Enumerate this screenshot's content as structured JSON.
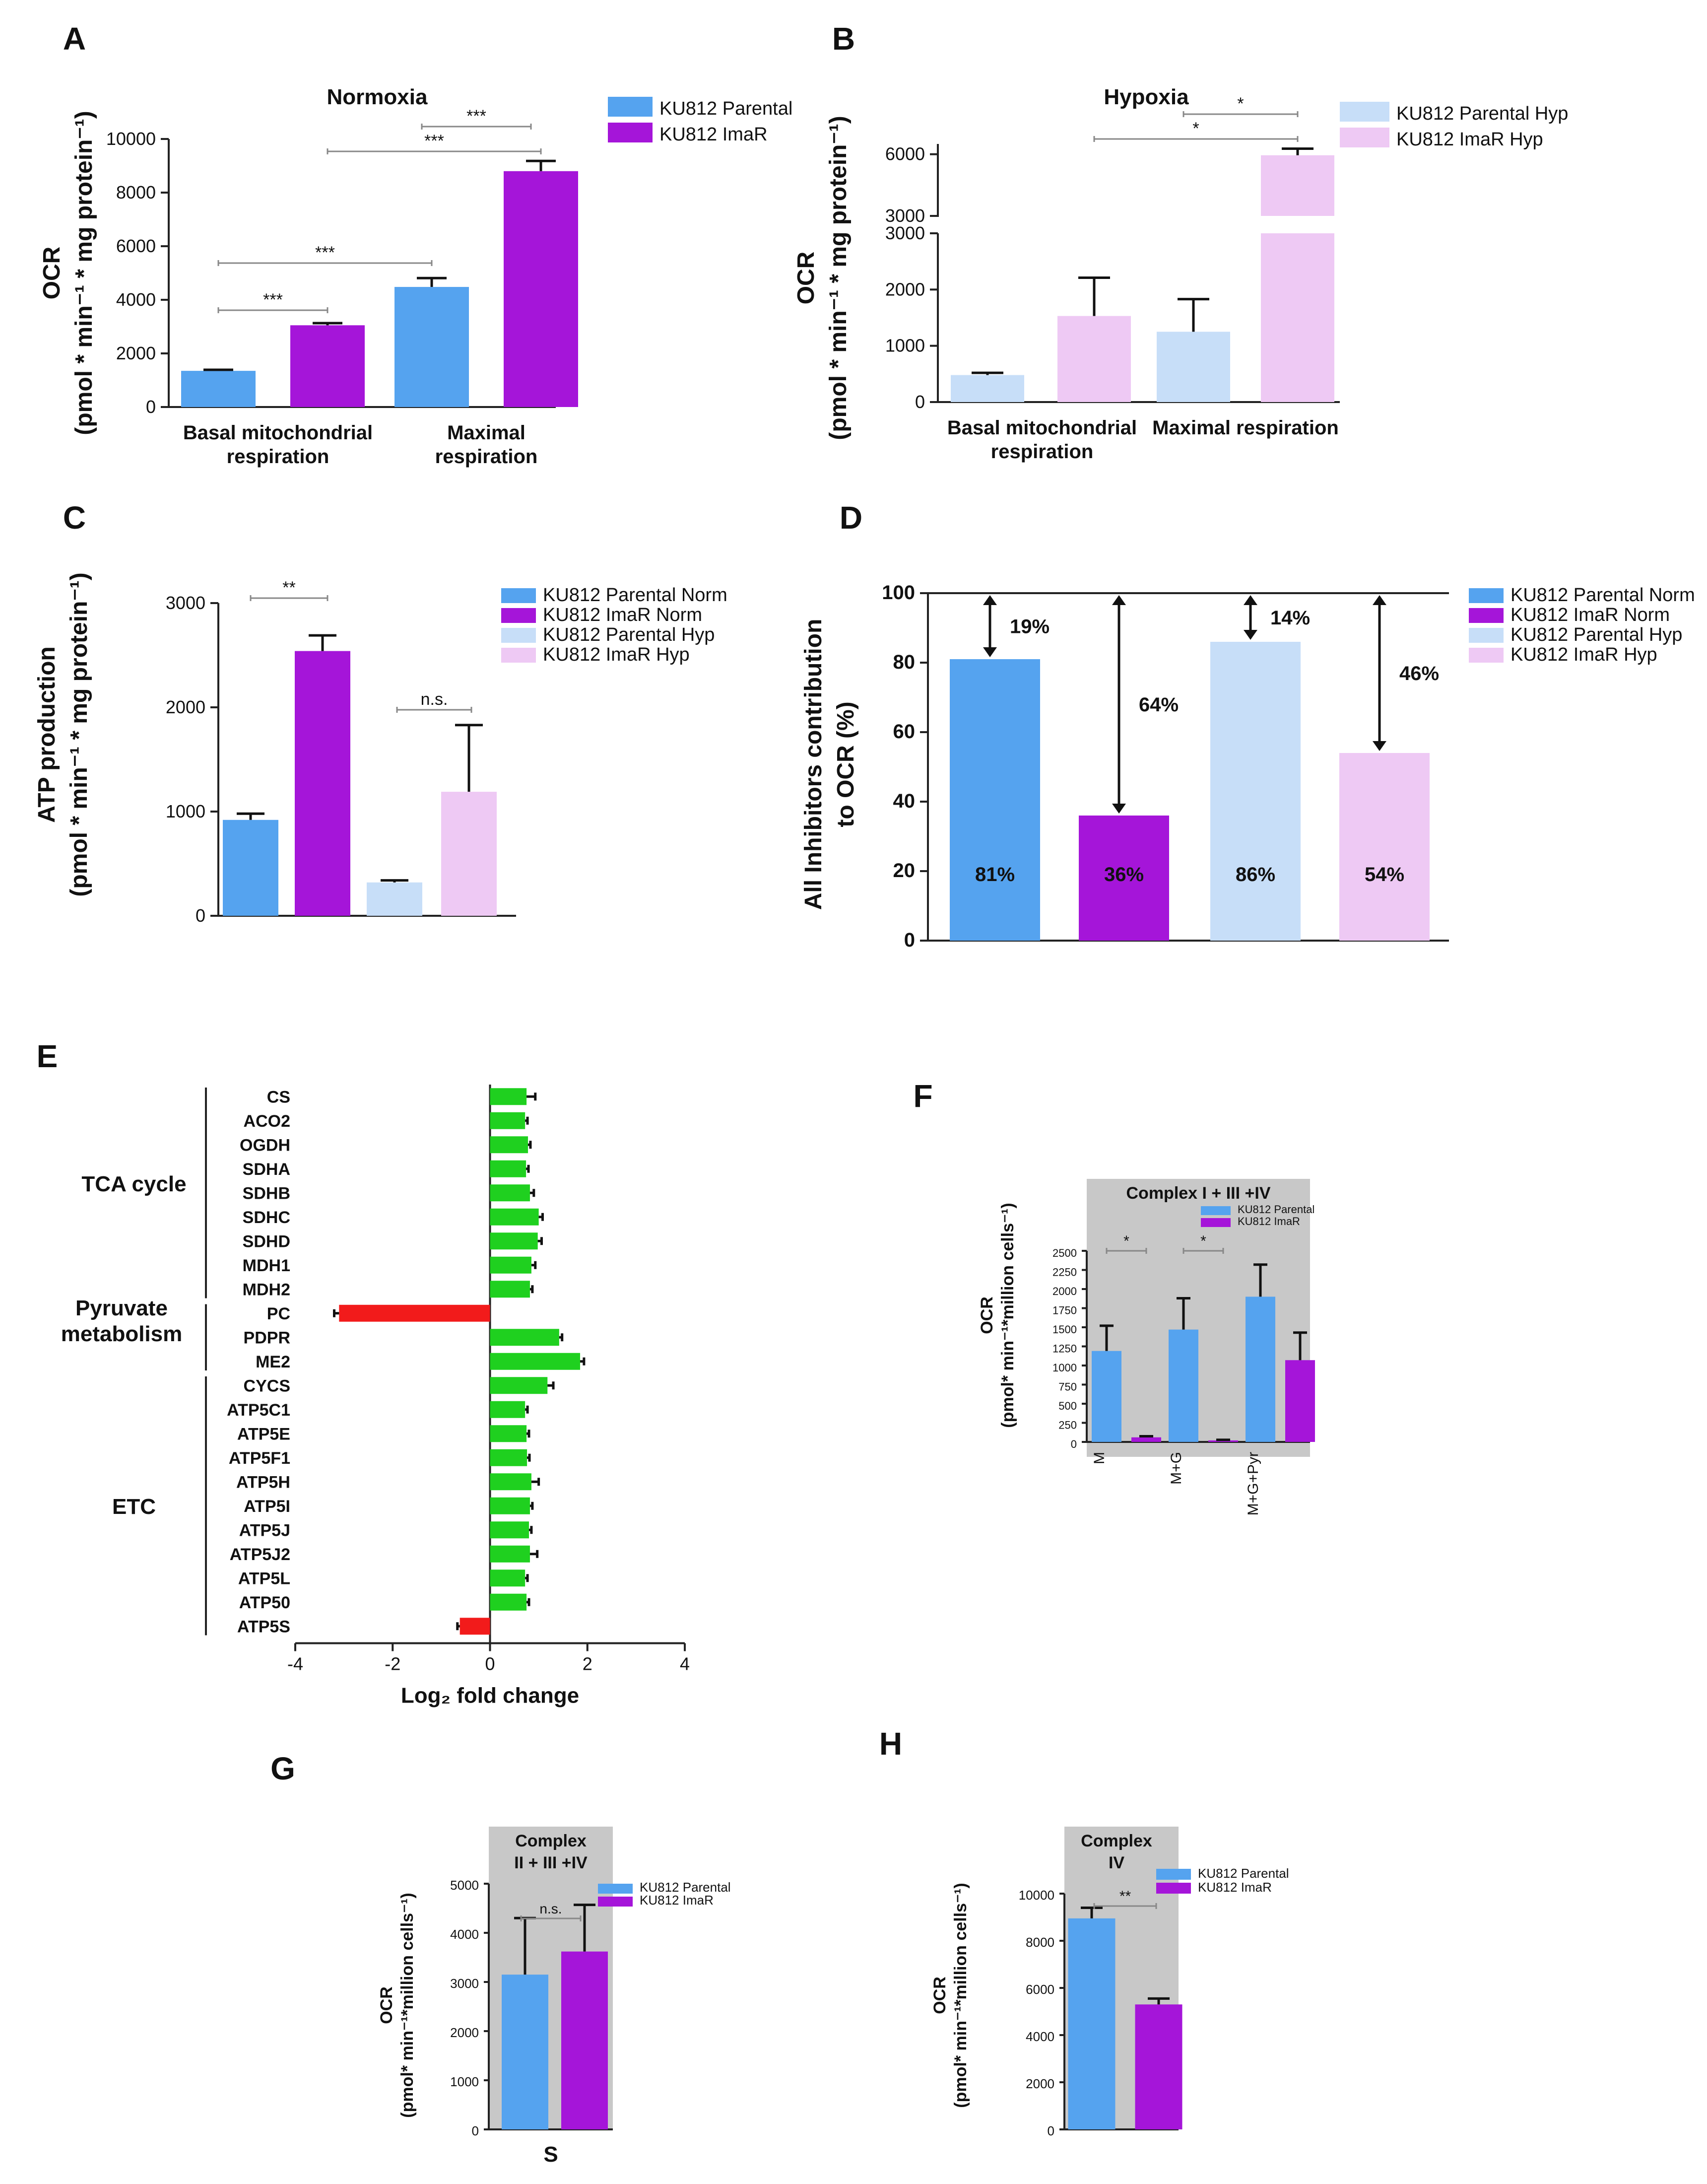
{
  "colors": {
    "parental": "#55a3ef",
    "imar": "#a515d9",
    "parental_hyp": "#c7def8",
    "imar_hyp": "#eec9f4",
    "green": "#1fd01f",
    "red": "#f21b1b",
    "grey_box": "#c8c8c8"
  },
  "chart_data": [
    {
      "panel": "A",
      "type": "bar",
      "title": "Normoxia",
      "ylabel": "OCR\n(pmol * min⁻¹ * mg protein⁻¹)",
      "categories": [
        "Basal mitochondrial\nrespiration",
        "Maximal\nrespiration"
      ],
      "yticks": [
        "0",
        "2000",
        "4000",
        "6000",
        "8000",
        "10000"
      ],
      "ylim": [
        0,
        10000
      ],
      "legend": [
        "KU812 Parental",
        "KU812 ImaR"
      ],
      "series": [
        {
          "name": "KU812 Parental",
          "values": [
            1350,
            4480
          ],
          "errors": [
            40,
            330
          ]
        },
        {
          "name": "KU812 ImaR",
          "values": [
            3050,
            8800
          ],
          "errors": [
            80,
            380
          ]
        }
      ],
      "significance": [
        "***",
        "***",
        "***",
        "***"
      ]
    },
    {
      "panel": "B",
      "type": "bar",
      "title": "Hypoxia",
      "ylabel": "OCR\n(pmol * min⁻¹ * mg protein⁻¹)",
      "categories": [
        "Basal mitochondrial\nrespiration",
        "Maximal respiration"
      ],
      "yticks_lower": [
        "0",
        "1000",
        "2000",
        "3000"
      ],
      "yticks_upper": [
        "3000",
        "6000"
      ],
      "legend": [
        "KU812 Parental  Hyp",
        "KU812 ImaR Hyp"
      ],
      "series": [
        {
          "name": "KU812 Parental  Hyp",
          "values": [
            480,
            1250
          ],
          "errors": [
            40,
            580
          ]
        },
        {
          "name": "KU812 ImaR Hyp",
          "values": [
            1530,
            5950
          ],
          "errors": [
            680,
            320
          ]
        }
      ],
      "significance": [
        "*",
        "*"
      ]
    },
    {
      "panel": "C",
      "type": "bar",
      "ylabel": "ATP production\n(pmol * min⁻¹ * mg protein⁻¹)",
      "yticks": [
        "0",
        "1000",
        "2000",
        "3000"
      ],
      "ylim": [
        0,
        3000
      ],
      "legend": [
        "KU812 Parental Norm",
        "KU812 ImaR Norm",
        "KU812 Parental Hyp",
        "KU812 ImaR Hyp"
      ],
      "values": [
        920,
        2540,
        320,
        1190
      ],
      "errors": [
        60,
        150,
        20,
        640
      ],
      "significance": [
        "**",
        "n.s."
      ]
    },
    {
      "panel": "D",
      "type": "bar",
      "ylabel": "All Inhibitors contribution\nto OCR (%)",
      "yticks": [
        "0",
        "20",
        "40",
        "60",
        "80",
        "100"
      ],
      "ylim": [
        0,
        100
      ],
      "legend": [
        "KU812 Parental Norm",
        "KU812 ImaR Norm",
        "KU812 Parental Hyp",
        "KU812 ImaR Hyp"
      ],
      "values": [
        81,
        36,
        86,
        54
      ],
      "bar_labels": [
        "81%",
        "36%",
        "86%",
        "54%"
      ],
      "gap_labels": [
        "19%",
        "64%",
        "14%",
        "46%"
      ]
    },
    {
      "panel": "E",
      "type": "bar",
      "xlabel": "Log₂ fold change",
      "xticks": [
        "-4",
        "-2",
        "0",
        "2",
        "4"
      ],
      "xlim": [
        -4,
        4
      ],
      "groups": [
        "TCA cycle",
        "Pyruvate\nmetabolism",
        "ETC"
      ],
      "genes": [
        "CS",
        "ACO2",
        "OGDH",
        "SDHA",
        "SDHB",
        "SDHC",
        "SDHD",
        "MDH1",
        "MDH2",
        "PC",
        "PDPR",
        "ME2",
        "CYCS",
        "ATP5C1",
        "ATP5E",
        "ATP5F1",
        "ATP5H",
        "ATP5I",
        "ATP5J",
        "ATP5J2",
        "ATP5L",
        "ATP50",
        "ATP5S"
      ],
      "values": [
        0.75,
        0.72,
        0.78,
        0.74,
        0.82,
        1.0,
        0.98,
        0.85,
        0.82,
        -3.1,
        1.42,
        1.85,
        1.18,
        0.72,
        0.75,
        0.76,
        0.85,
        0.82,
        0.8,
        0.82,
        0.72,
        0.75,
        -0.62
      ],
      "errors": [
        0.18,
        0.05,
        0.05,
        0.05,
        0.08,
        0.08,
        0.08,
        0.08,
        0.05,
        0.1,
        0.06,
        0.08,
        0.12,
        0.05,
        0.05,
        0.05,
        0.15,
        0.05,
        0.05,
        0.15,
        0.05,
        0.05,
        0.05
      ]
    },
    {
      "panel": "F",
      "type": "bar",
      "title": "Complex I + III +IV",
      "ylabel": "OCR\n(pmol* min⁻¹*million cells⁻¹)",
      "categories": [
        "M",
        "M+G",
        "M+G+Pyr"
      ],
      "yticks": [
        "0",
        "250",
        "500",
        "750",
        "1000",
        "1250",
        "1500",
        "1750",
        "2000",
        "2250",
        "2500"
      ],
      "ylim": [
        0,
        2500
      ],
      "legend": [
        "KU812 Parental",
        "KU812 ImaR"
      ],
      "series": [
        {
          "name": "KU812 Parental",
          "values": [
            1190,
            1470,
            1900
          ],
          "errors": [
            330,
            410,
            420
          ]
        },
        {
          "name": "KU812 ImaR",
          "values": [
            60,
            20,
            1070
          ],
          "errors": [
            15,
            8,
            360
          ]
        }
      ],
      "significance": [
        "*",
        "*"
      ]
    },
    {
      "panel": "G",
      "type": "bar",
      "title": "Complex\nII + III +IV",
      "ylabel": "OCR\n(pmol* min⁻¹*million cells⁻¹)",
      "categories": [
        "S"
      ],
      "yticks": [
        "0",
        "1000",
        "2000",
        "3000",
        "4000",
        "5000"
      ],
      "ylim": [
        0,
        5000
      ],
      "legend": [
        "KU812 Parental",
        "KU812 ImaR"
      ],
      "series": [
        {
          "name": "KU812 Parental",
          "values": [
            3150
          ],
          "errors": [
            1150
          ]
        },
        {
          "name": "KU812 ImaR",
          "values": [
            3620
          ],
          "errors": [
            950
          ]
        }
      ],
      "significance": [
        "n.s."
      ]
    },
    {
      "panel": "H",
      "type": "bar",
      "title": "Complex\nIV",
      "ylabel": "OCR\n(pmol* min⁻¹*million cells⁻¹)",
      "yticks": [
        "0",
        "2000",
        "4000",
        "6000",
        "8000",
        "10000"
      ],
      "ylim": [
        0,
        10000
      ],
      "legend": [
        "KU812 Parental",
        "KU812 ImaR"
      ],
      "series": [
        {
          "name": "KU812 Parental",
          "values": [
            8950
          ],
          "errors": [
            450
          ]
        },
        {
          "name": "KU812 ImaR",
          "values": [
            5300
          ],
          "errors": [
            250
          ]
        }
      ],
      "significance": [
        "**"
      ]
    }
  ]
}
